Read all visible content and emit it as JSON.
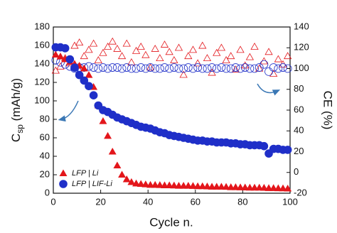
{
  "chart_data": {
    "type": "scatter",
    "xlabel": "Cycle n.",
    "ylabel": [
      "C",
      "sp",
      " (mAh/g)"
    ],
    "y2label": "CE (%)",
    "xlim": [
      0,
      100
    ],
    "xticks": [
      0,
      20,
      40,
      60,
      80,
      100
    ],
    "ylim": [
      0,
      180
    ],
    "yticks": [
      0,
      20,
      40,
      60,
      80,
      100,
      120,
      140,
      160,
      180
    ],
    "y2lim": [
      -20,
      140
    ],
    "y2ticks": [
      -20,
      0,
      20,
      40,
      60,
      80,
      100,
      120,
      140
    ],
    "legend": "bottom-left",
    "x": [
      1,
      3,
      5,
      7,
      9,
      11,
      13,
      15,
      17,
      19,
      21,
      23,
      25,
      27,
      29,
      31,
      33,
      35,
      37,
      39,
      41,
      43,
      45,
      47,
      49,
      51,
      53,
      55,
      57,
      59,
      61,
      63,
      65,
      67,
      69,
      71,
      73,
      75,
      77,
      79,
      81,
      83,
      85,
      87,
      89,
      91,
      93,
      95,
      97,
      99
    ],
    "series": [
      {
        "name": "LFP | Li",
        "color": "#e3161b",
        "marker": "triangle",
        "filled": true,
        "values": [
          150,
          148,
          145,
          142,
          140,
          138,
          135,
          128,
          115,
          95,
          78,
          62,
          45,
          30,
          20,
          15,
          12,
          10.5,
          10,
          9.5,
          9,
          9,
          8.8,
          8.5,
          8.5,
          8.3,
          8,
          8,
          8,
          7.8,
          7.5,
          7.5,
          7.3,
          7,
          7,
          7,
          6.8,
          6.5,
          6.5,
          6.3,
          6.2,
          6,
          6,
          6,
          5.8,
          5.5,
          5.5,
          5.3,
          5.2,
          5
        ]
      },
      {
        "name": "LFP | LIF-Li",
        "color": "#1f2fc8",
        "marker": "circle",
        "filled": true,
        "values": [
          158,
          158,
          157,
          145,
          136,
          128,
          122,
          116,
          106,
          95,
          90,
          88,
          85,
          82,
          80,
          78,
          76,
          74,
          72,
          71,
          70,
          68,
          66,
          65,
          63,
          62,
          61,
          60,
          59,
          58,
          57,
          57,
          56,
          56,
          55,
          55,
          55,
          54,
          54,
          53,
          53,
          52,
          52,
          52,
          51,
          43,
          48,
          48,
          47,
          47
        ]
      },
      {
        "color": "#e3161b",
        "marker": "triangle",
        "filled": false,
        "axis": "y2",
        "values": [
          98,
          102,
          110,
          105,
          122,
          125,
          112,
          118,
          124,
          108,
          115,
          121,
          126,
          119,
          112,
          124,
          106,
          117,
          121,
          113,
          101,
          119,
          110,
          123,
          116,
          108,
          120,
          94,
          112,
          118,
          105,
          122,
          110,
          96,
          115,
          120,
          108,
          112,
          99,
          118,
          103,
          111,
          121,
          100,
          107,
          116,
          95,
          109,
          104,
          112
        ]
      },
      {
        "color": "#1f2fc8",
        "marker": "circle",
        "filled": false,
        "axis": "y2",
        "values": [
          108,
          106,
          104,
          102,
          100,
          101,
          101,
          102,
          101,
          100,
          101,
          100,
          101,
          101,
          100,
          101,
          100,
          100,
          101,
          100,
          101,
          100,
          100,
          101,
          100,
          101,
          100,
          100,
          101,
          100,
          101,
          100,
          100,
          101,
          100,
          101,
          100,
          100,
          101,
          100,
          101,
          100,
          100,
          101,
          104,
          97,
          101,
          100,
          101,
          100
        ]
      }
    ]
  }
}
